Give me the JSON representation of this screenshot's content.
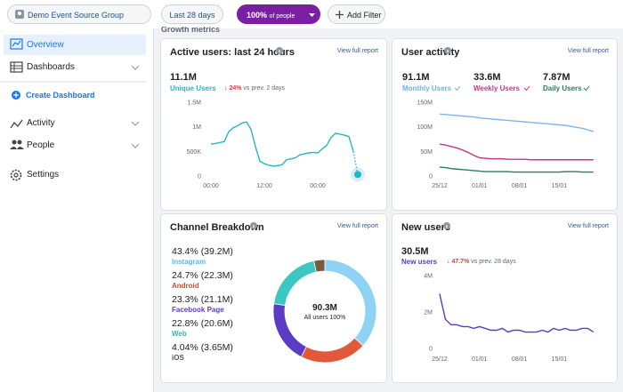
{
  "toolbar": {
    "source": "Demo Event Source Group",
    "date_range": "Last 28 days",
    "audience": "100%",
    "audience_suffix": "of people",
    "filter": "Add Filter"
  },
  "sidebar": {
    "items": [
      "Overview",
      "Dashboards",
      "Create Dashboard",
      "Activity",
      "People",
      "Settings"
    ]
  },
  "section_title": "Growth metrics",
  "cards": [
    {
      "title": "Active users: last 24 hours",
      "link": "View full report",
      "metrics": [
        {
          "value": "11.1M",
          "label": "Unique Users",
          "color": "#26b5c4"
        }
      ],
      "change": {
        "text": "↓ 24%",
        "suffix": "vs prev. 2 days"
      },
      "chart_data": {
        "type": "line",
        "categories": [
          "00:00",
          null,
          null,
          null,
          null,
          null,
          null,
          null,
          null,
          null,
          null,
          null,
          "12:00",
          null,
          null,
          null,
          null,
          null,
          null,
          null,
          null,
          null,
          null,
          null,
          "00:00",
          null,
          null,
          null,
          null,
          null,
          null,
          null,
          null,
          null
        ],
        "series": [
          {
            "name": "Unique Users",
            "color": "#26b5c4",
            "values": [
              650000,
              660000,
              680000,
              700000,
              900000,
              980000,
              1020000,
              1080000,
              1100000,
              950000,
              600000,
              300000,
              250000,
              220000,
              200000,
              210000,
              230000,
              330000,
              350000,
              370000,
              430000,
              450000,
              470000,
              480000,
              470000,
              550000,
              620000,
              780000,
              870000,
              850000,
              830000,
              800000,
              500000,
              30000
            ]
          }
        ],
        "ylim": [
          0,
          1500000
        ],
        "yticks": [
          0,
          {
            "value": 500000,
            "label": "500K"
          },
          {
            "value": 1000000,
            "label": "1M"
          },
          {
            "value": 1500000,
            "label": "1.5M"
          }
        ]
      }
    },
    {
      "title": "User activity",
      "link": "View full report",
      "metrics": [
        {
          "value": "91.1M",
          "label": "Monthly Users",
          "color": "#6fb1e6"
        },
        {
          "value": "33.6M",
          "label": "Weekly Users",
          "color": "#c0388a"
        },
        {
          "value": "7.87M",
          "label": "Daily Users",
          "color": "#2e7d5b"
        }
      ],
      "chart_data": {
        "type": "line",
        "categories": [
          "25/12",
          null,
          null,
          null,
          null,
          null,
          null,
          "01/01",
          null,
          null,
          null,
          null,
          null,
          null,
          "08/01",
          null,
          null,
          null,
          null,
          null,
          null,
          "15/01",
          null,
          null,
          null,
          null,
          null,
          null
        ],
        "series": [
          {
            "name": "Monthly Users",
            "color": "#7fb3ea",
            "values": [
              126000000,
              125000000,
              124000000,
              123000000,
              122000000,
              121000000,
              120000000,
              118000000,
              117000000,
              116000000,
              115000000,
              114000000,
              113000000,
              112000000,
              111000000,
              110000000,
              109000000,
              108000000,
              107000000,
              106000000,
              105000000,
              104000000,
              103000000,
              101000000,
              99000000,
              97000000,
              94000000,
              90000000
            ]
          },
          {
            "name": "Weekly Users",
            "color": "#c0388a",
            "values": [
              65000000,
              63000000,
              60000000,
              57000000,
              53000000,
              48000000,
              42000000,
              37000000,
              36000000,
              35000000,
              35000000,
              35000000,
              34000000,
              34000000,
              34000000,
              34000000,
              33000000,
              33000000,
              33000000,
              33000000,
              33000000,
              33000000,
              33000000,
              33000000,
              33000000,
              33000000,
              33000000,
              33000000
            ]
          },
          {
            "name": "Daily Users",
            "color": "#2e7d5b",
            "values": [
              18000000,
              17000000,
              15000000,
              14000000,
              13000000,
              12000000,
              11000000,
              10000000,
              9000000,
              9000000,
              9000000,
              9000000,
              9000000,
              8000000,
              8000000,
              8000000,
              8000000,
              8000000,
              8000000,
              8000000,
              8000000,
              8000000,
              9000000,
              9000000,
              9000000,
              8000000,
              8000000,
              8000000
            ]
          }
        ],
        "ylim": [
          0,
          150000000
        ],
        "yticks": [
          0,
          {
            "value": 50000000,
            "label": "50M"
          },
          {
            "value": 100000000,
            "label": "100M"
          },
          {
            "value": 150000000,
            "label": "150M"
          }
        ]
      }
    },
    {
      "title": "Channel Breakdown",
      "link": "View full report",
      "chart_data": {
        "type": "pie",
        "categories": [
          "Instagram",
          "Android",
          "Facebook Page",
          "Web",
          "iOS"
        ],
        "values": [
          43.4,
          24.7,
          23.3,
          22.8,
          4.04
        ],
        "value_labels": [
          "43.4% (39.2M)",
          "24.7% (22.3M)",
          "23.3% (21.1M)",
          "22.8% (20.6M)",
          "4.04% (3.65M)"
        ],
        "colors": [
          "#8fd3f4",
          "#e0593b",
          "#5b3cc4",
          "#3cc8c0",
          "#7a5a3a"
        ],
        "label_colors": [
          "#5bb8e6",
          "#d9443a",
          "#5b3cc4",
          "#2fb8b0",
          "#555555"
        ],
        "center_value": "90.3M",
        "center_label": "All users 100%"
      }
    },
    {
      "title": "New users",
      "link": "View full report",
      "metrics": [
        {
          "value": "30.5M",
          "label": "New users",
          "color": "#5b3cc4"
        }
      ],
      "change": {
        "text": "↓ 47.7%",
        "suffix": "vs prev. 28 days"
      },
      "chart_data": {
        "type": "line",
        "categories": [
          "25/12",
          null,
          null,
          null,
          null,
          null,
          null,
          "01/01",
          null,
          null,
          null,
          null,
          null,
          null,
          "08/01",
          null,
          null,
          null,
          null,
          null,
          null,
          "15/01",
          null,
          null,
          null,
          null,
          null,
          null
        ],
        "series": [
          {
            "name": "New users",
            "color": "#5b3cc4",
            "values": [
              3000000,
              1600000,
              1300000,
              1300000,
              1200000,
              1200000,
              1100000,
              1200000,
              1100000,
              1000000,
              1000000,
              1100000,
              900000,
              1000000,
              1000000,
              900000,
              900000,
              900000,
              1000000,
              900000,
              1100000,
              1000000,
              1100000,
              1000000,
              1000000,
              1100000,
              1100000,
              900000
            ]
          }
        ],
        "ylim": [
          0,
          4000000
        ],
        "yticks": [
          0,
          {
            "value": 2000000,
            "label": "2M"
          },
          {
            "value": 4000000,
            "label": "4M"
          }
        ]
      }
    }
  ]
}
